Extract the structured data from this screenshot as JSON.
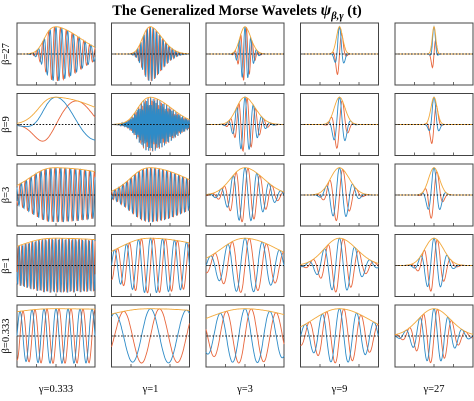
{
  "title": {
    "text": "The Generalized Morse Wavelets",
    "symbol": "ψ",
    "subscript": "β,γ",
    "argument": "(t)"
  },
  "colors": {
    "real": "#2E8BC7",
    "imaginary": "#E8663C",
    "envelope": "#F2A93B",
    "zero_line": "#111111",
    "frame": "#444444"
  },
  "chart_data": {
    "type": "line",
    "title": "The Generalized Morse Wavelets ψβ,γ(t)",
    "grid": false,
    "legend": "none",
    "rows": [
      {
        "label": "β=27",
        "beta": 27
      },
      {
        "label": "β=9",
        "beta": 9
      },
      {
        "label": "β=3",
        "beta": 3
      },
      {
        "label": "β=1",
        "beta": 1
      },
      {
        "label": "β=0.333",
        "beta": 0.333
      }
    ],
    "columns": [
      {
        "label": "γ=0.333",
        "gamma": 0.333
      },
      {
        "label": "γ=1",
        "gamma": 1
      },
      {
        "label": "γ=3",
        "gamma": 3
      },
      {
        "label": "γ=9",
        "gamma": 9
      },
      {
        "label": "γ=27",
        "gamma": 27
      }
    ],
    "curves": [
      "real part",
      "imaginary part",
      "envelope (modulus)"
    ]
  }
}
